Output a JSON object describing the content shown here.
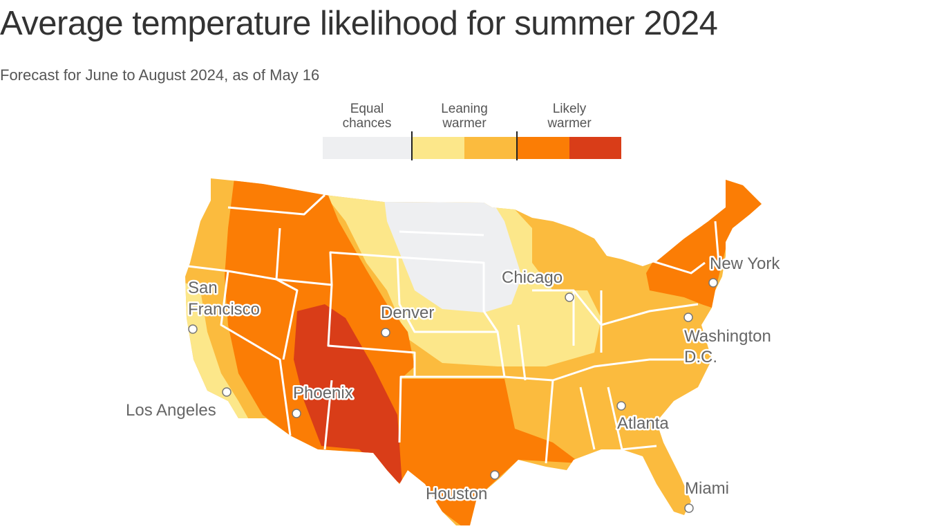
{
  "title": "Average temperature likelihood for summer 2024",
  "subtitle": "Forecast for June to August 2024, as of May 16",
  "legend": {
    "groups": [
      {
        "label_line1": "Equal",
        "label_line2": "chances"
      },
      {
        "label_line1": "Leaning",
        "label_line2": "warmer"
      },
      {
        "label_line1": "Likely",
        "label_line2": "warmer"
      }
    ],
    "colors": [
      "#eeeff1",
      "#fce78a",
      "#fbbb3e",
      "#fb7d05",
      "#d93d18"
    ]
  },
  "cities": [
    {
      "name_line1": "San",
      "name_line2": "Francisco"
    },
    {
      "name_line1": "Los Angeles"
    },
    {
      "name_line1": "Phoenix"
    },
    {
      "name_line1": "Denver"
    },
    {
      "name_line1": "Chicago"
    },
    {
      "name_line1": "New York"
    },
    {
      "name_line1": "Washington",
      "name_line2": "D.C."
    },
    {
      "name_line1": "Atlanta"
    },
    {
      "name_line1": "Houston"
    },
    {
      "name_line1": "Miami"
    }
  ]
}
